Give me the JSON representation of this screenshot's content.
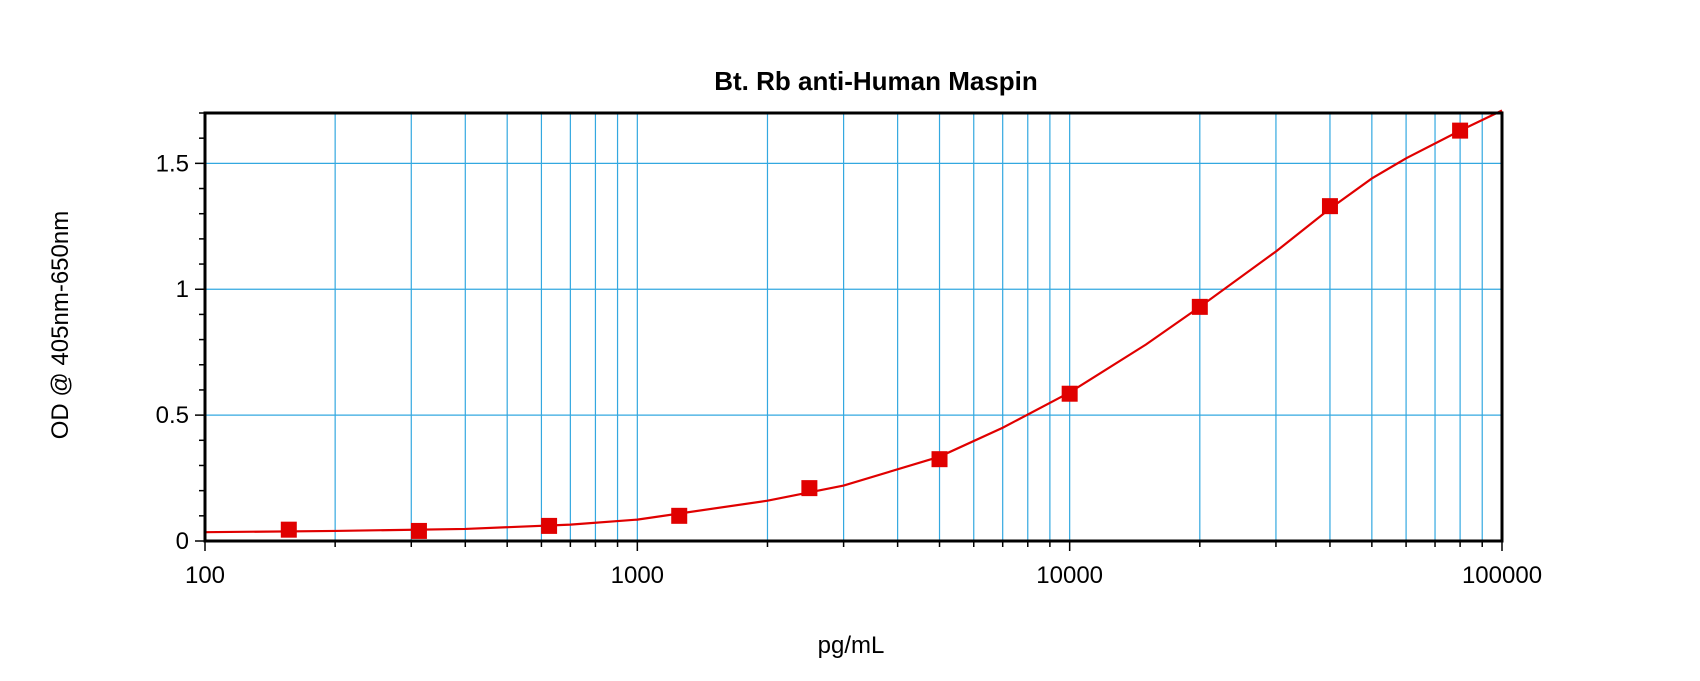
{
  "chart_data": {
    "type": "scatter",
    "title": "Bt. Rb anti-Human Maspin",
    "xlabel": "pg/mL",
    "ylabel": "OD @ 405nm-650nm",
    "x_scale": "log",
    "xlim": [
      100,
      100000
    ],
    "ylim": [
      0,
      1.7
    ],
    "x_ticks": [
      100,
      1000,
      10000,
      100000
    ],
    "x_tick_labels": [
      "100",
      "1000",
      "10000",
      "100000"
    ],
    "y_ticks": [
      0,
      0.5,
      1,
      1.5
    ],
    "y_tick_labels": [
      "0",
      "0.5",
      "1",
      "1.5"
    ],
    "grid": true,
    "colors": {
      "series": "#e00000",
      "grid": "#33a8e0",
      "frame": "#000000"
    },
    "series": [
      {
        "marker": "square",
        "x": [
          156.25,
          312.5,
          625,
          1250,
          2500,
          5000,
          10000,
          20000,
          40000,
          80000
        ],
        "y": [
          0.045,
          0.04,
          0.06,
          0.1,
          0.21,
          0.325,
          0.585,
          0.93,
          1.33,
          1.63
        ]
      }
    ],
    "fit": {
      "type": "4-parameter logistic",
      "x": [
        100,
        200,
        400,
        700,
        1000,
        2000,
        3000,
        5000,
        7000,
        10000,
        15000,
        20000,
        30000,
        40000,
        50000,
        60000,
        80000,
        100000
      ],
      "y": [
        0.035,
        0.04,
        0.048,
        0.065,
        0.085,
        0.16,
        0.22,
        0.335,
        0.45,
        0.59,
        0.78,
        0.93,
        1.15,
        1.32,
        1.44,
        1.52,
        1.63,
        1.71
      ]
    }
  }
}
